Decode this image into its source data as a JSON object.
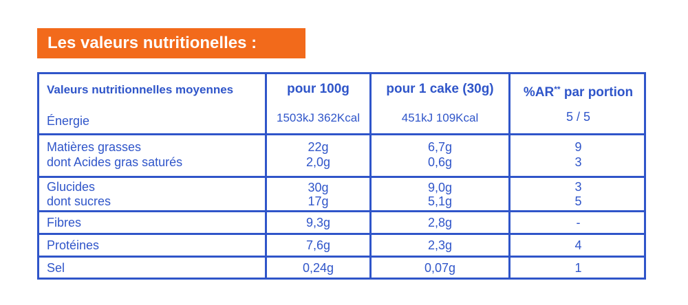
{
  "title": "Les valeurs nutritionelles :",
  "headers": {
    "col1": "Valeurs nutritionnelles moyennes",
    "col2": "pour 100g",
    "col3": "pour 1 cake (30g)",
    "col4_prefix": "%AR",
    "col4_sup": "**",
    "col4_suffix": "par portion"
  },
  "rows": [
    {
      "label": "Énergie",
      "per100": "1503kJ  362Kcal",
      "perCake": "451kJ  109Kcal",
      "ar": "5 / 5"
    },
    {
      "label": "Matières grasses",
      "per100": "22g",
      "perCake": "6,7g",
      "ar": "9"
    },
    {
      "label": "dont Acides gras saturés",
      "per100": "2,0g",
      "perCake": "0,6g",
      "ar": "3"
    },
    {
      "label": "Glucides",
      "per100": "30g",
      "perCake": "9,0g",
      "ar": "3"
    },
    {
      "label": "dont sucres",
      "per100": "17g",
      "perCake": "5,1g",
      "ar": "5"
    },
    {
      "label": "Fibres",
      "per100": "9,3g",
      "perCake": "2,8g",
      "ar": "-"
    },
    {
      "label": "Protéines",
      "per100": "7,6g",
      "perCake": "2,3g",
      "ar": "4"
    },
    {
      "label": "Sel",
      "per100": "0,24g",
      "perCake": "0,07g",
      "ar": "1"
    }
  ],
  "colors": {
    "accent": "#f26a1b",
    "text": "#2f55c9",
    "background": "#ffffff"
  }
}
